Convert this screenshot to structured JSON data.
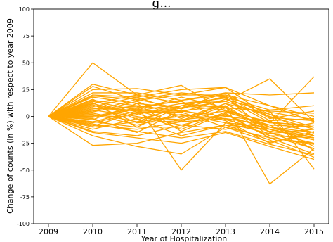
{
  "chart_data": {
    "type": "line",
    "title": "",
    "title_visible_fragment": "g...",
    "xlabel": "Year of Hospitalization",
    "ylabel": "Change of counts (in %) with respect to year 2009",
    "x": [
      2009,
      2010,
      2011,
      2012,
      2013,
      2014,
      2015
    ],
    "xlim": [
      2009,
      2015
    ],
    "ylim": [
      -100,
      100
    ],
    "y_ticks": [
      100,
      75,
      50,
      25,
      0,
      -25,
      -50,
      -75,
      -100
    ],
    "x_ticks": [
      2009,
      2010,
      2011,
      2012,
      2013,
      2014,
      2015
    ],
    "grid": false,
    "line_color": "#FFA500",
    "series": [
      {
        "values": [
          0,
          50,
          20,
          12,
          8,
          5,
          3
        ]
      },
      {
        "values": [
          0,
          30,
          20,
          29,
          5,
          -5,
          -10
        ]
      },
      {
        "values": [
          0,
          28,
          15,
          20,
          27,
          10,
          -5
        ]
      },
      {
        "values": [
          0,
          -27,
          -25,
          -15,
          -8,
          -12,
          -20
        ]
      },
      {
        "values": [
          0,
          -18,
          -28,
          -35,
          -10,
          -20,
          -25
        ]
      },
      {
        "values": [
          0,
          5,
          10,
          -50,
          -6,
          -10,
          -15
        ]
      },
      {
        "values": [
          0,
          10,
          5,
          5,
          10,
          -63,
          -30
        ]
      },
      {
        "values": [
          0,
          12,
          20,
          12,
          14,
          35,
          -5
        ]
      },
      {
        "values": [
          0,
          8,
          5,
          12,
          17,
          -6,
          37
        ]
      },
      {
        "values": [
          0,
          -5,
          -10,
          -10,
          8,
          5,
          -49
        ]
      },
      {
        "values": [
          0,
          25,
          26,
          20,
          20,
          10,
          0
        ]
      },
      {
        "values": [
          0,
          20,
          18,
          25,
          27,
          -1,
          -4
        ]
      },
      {
        "values": [
          0,
          22,
          22,
          15,
          22,
          20,
          22
        ]
      },
      {
        "values": [
          0,
          -15,
          -20,
          -25,
          -15,
          -28,
          -40
        ]
      },
      {
        "values": [
          0,
          3,
          -5,
          10,
          18,
          -15,
          -30
        ]
      },
      {
        "values": [
          0,
          -10,
          -5,
          0,
          5,
          -10,
          -20
        ]
      },
      {
        "values": [
          0,
          0,
          8,
          15,
          20,
          2,
          -10
        ]
      },
      {
        "values": [
          0,
          15,
          10,
          5,
          0,
          -5,
          -15
        ]
      },
      {
        "values": [
          0,
          -5,
          5,
          -5,
          10,
          -15,
          -25
        ]
      },
      {
        "values": [
          0,
          18,
          12,
          8,
          14,
          0,
          -12
        ]
      },
      {
        "values": [
          0,
          6,
          0,
          -8,
          2,
          -20,
          -35
        ]
      },
      {
        "values": [
          0,
          -8,
          -12,
          -5,
          -2,
          -18,
          -30
        ]
      },
      {
        "values": [
          0,
          12,
          2,
          10,
          6,
          -6,
          -8
        ]
      },
      {
        "values": [
          0,
          4,
          14,
          -2,
          12,
          -10,
          -18
        ]
      },
      {
        "values": [
          0,
          -12,
          -2,
          -18,
          -8,
          -22,
          -38
        ]
      },
      {
        "values": [
          0,
          9,
          18,
          4,
          16,
          4,
          -3
        ]
      },
      {
        "values": [
          0,
          -2,
          -15,
          6,
          -4,
          -25,
          -14
        ]
      },
      {
        "values": [
          0,
          14,
          6,
          18,
          8,
          -12,
          -22
        ]
      },
      {
        "values": [
          0,
          -6,
          3,
          -12,
          4,
          -8,
          -28
        ]
      },
      {
        "values": [
          0,
          2,
          -8,
          2,
          -6,
          -16,
          -12
        ]
      },
      {
        "values": [
          0,
          16,
          -3,
          8,
          22,
          -2,
          5
        ]
      },
      {
        "values": [
          0,
          -14,
          -18,
          -8,
          -12,
          -4,
          -32
        ]
      },
      {
        "values": [
          0,
          7,
          9,
          14,
          -3,
          -14,
          -6
        ]
      },
      {
        "values": [
          0,
          -3,
          12,
          -14,
          3,
          -20,
          -26
        ]
      },
      {
        "values": [
          0,
          11,
          -6,
          -4,
          12,
          2,
          -18
        ]
      },
      {
        "values": [
          0,
          -9,
          4,
          4,
          -10,
          -24,
          -16
        ]
      },
      {
        "values": [
          0,
          19,
          16,
          22,
          18,
          6,
          10
        ]
      },
      {
        "values": [
          0,
          1,
          -1,
          -3,
          1,
          -12,
          -22
        ]
      },
      {
        "values": [
          0,
          -1,
          7,
          1,
          -2,
          -8,
          -10
        ]
      },
      {
        "values": [
          0,
          13,
          -10,
          10,
          9,
          -18,
          -20
        ]
      },
      {
        "values": [
          0,
          -7,
          -14,
          -20,
          -14,
          -26,
          -36
        ]
      },
      {
        "values": [
          0,
          5,
          16,
          7,
          19,
          -4,
          -2
        ]
      }
    ]
  }
}
